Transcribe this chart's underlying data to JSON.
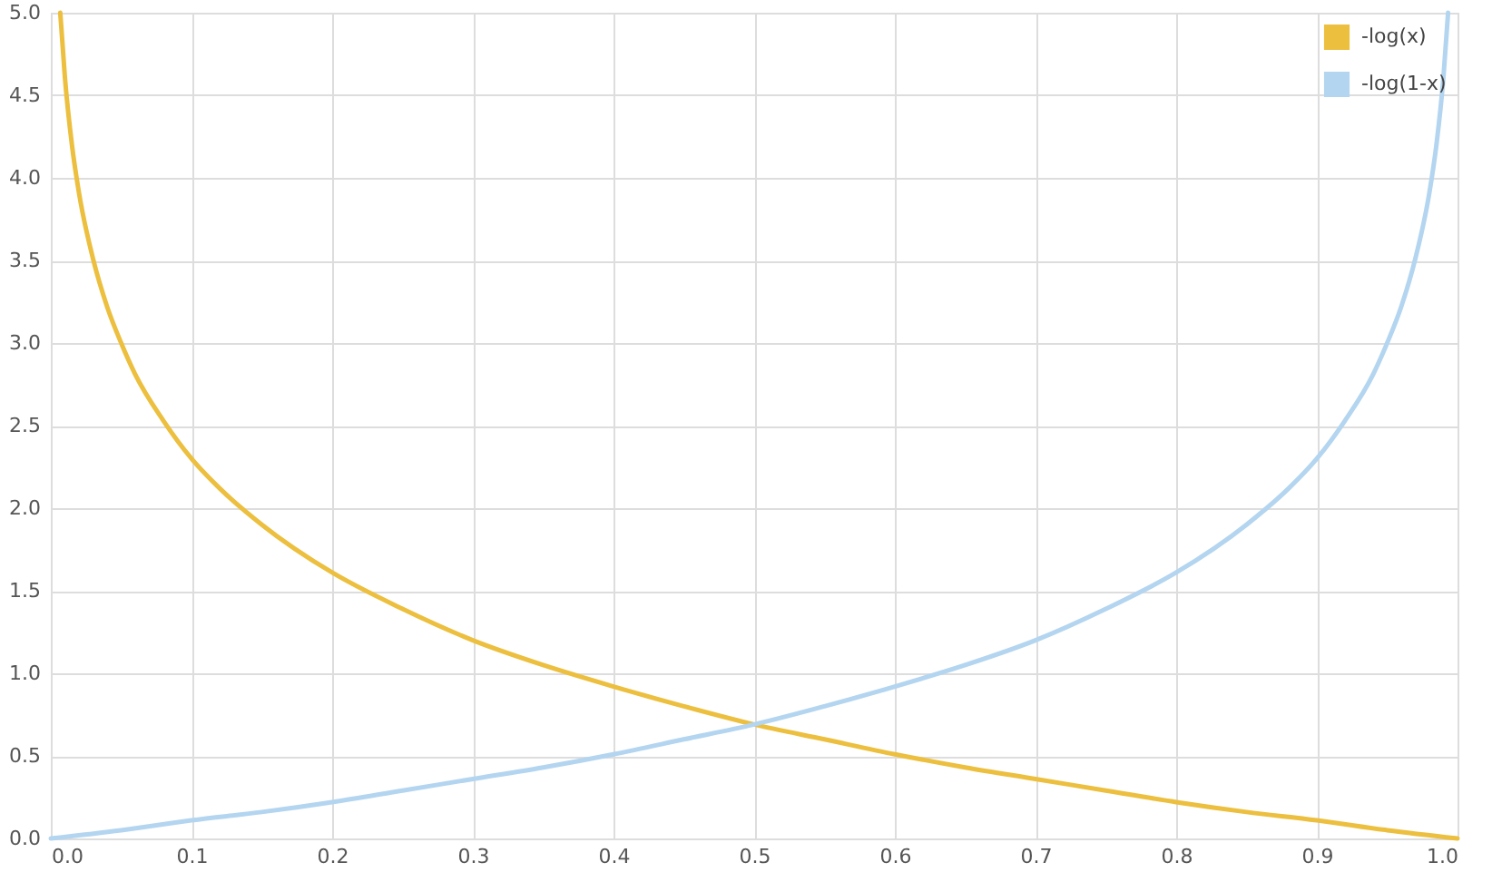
{
  "chart_data": {
    "type": "line",
    "series": [
      {
        "name": "-log(x)",
        "color": "#ecbf3f",
        "x": [
          0.0067,
          0.01,
          0.015,
          0.02,
          0.03,
          0.04,
          0.05,
          0.06,
          0.08,
          0.1,
          0.12,
          0.15,
          0.2,
          0.25,
          0.3,
          0.35,
          0.4,
          0.45,
          0.5,
          0.55,
          0.6,
          0.65,
          0.7,
          0.75,
          0.8,
          0.85,
          0.9,
          0.95,
          1.0
        ],
        "values": [
          5.0,
          4.61,
          4.2,
          3.91,
          3.51,
          3.22,
          3.0,
          2.81,
          2.53,
          2.3,
          2.12,
          1.9,
          1.61,
          1.39,
          1.2,
          1.05,
          0.92,
          0.8,
          0.69,
          0.6,
          0.51,
          0.43,
          0.36,
          0.29,
          0.22,
          0.16,
          0.11,
          0.05,
          0.0
        ]
      },
      {
        "name": "-log(1-x)",
        "color": "#b3d5f0",
        "x": [
          0.0,
          0.05,
          0.1,
          0.15,
          0.2,
          0.25,
          0.3,
          0.35,
          0.4,
          0.45,
          0.5,
          0.55,
          0.6,
          0.65,
          0.7,
          0.75,
          0.8,
          0.85,
          0.88,
          0.9,
          0.92,
          0.94,
          0.95,
          0.96,
          0.97,
          0.98,
          0.985,
          0.99,
          0.9933
        ],
        "values": [
          0.0,
          0.05,
          0.11,
          0.16,
          0.22,
          0.29,
          0.36,
          0.43,
          0.51,
          0.6,
          0.69,
          0.8,
          0.92,
          1.05,
          1.2,
          1.39,
          1.61,
          1.9,
          2.12,
          2.3,
          2.53,
          2.81,
          3.0,
          3.22,
          3.51,
          3.91,
          4.2,
          4.61,
          5.0
        ]
      }
    ],
    "xlim": [
      0,
      1
    ],
    "ylim": [
      0,
      5
    ],
    "xticks": [
      {
        "value": 0,
        "label": "0.0"
      },
      0.1,
      0.2,
      0.3,
      0.4,
      0.5,
      0.6,
      0.7,
      0.8,
      0.9,
      {
        "value": 1,
        "label": "1.0"
      }
    ],
    "yticks": [
      {
        "value": 0,
        "label": "0.0"
      },
      0.5,
      {
        "value": 1,
        "label": "1.0"
      },
      1.5,
      {
        "value": 2,
        "label": "2.0"
      },
      2.5,
      {
        "value": 3,
        "label": "3.0"
      },
      3.5,
      {
        "value": 4,
        "label": "4.0"
      },
      4.5,
      {
        "value": 5,
        "label": "5.0"
      }
    ],
    "grid": true,
    "legend": "top right",
    "marker": "none",
    "line_style": "solid"
  }
}
